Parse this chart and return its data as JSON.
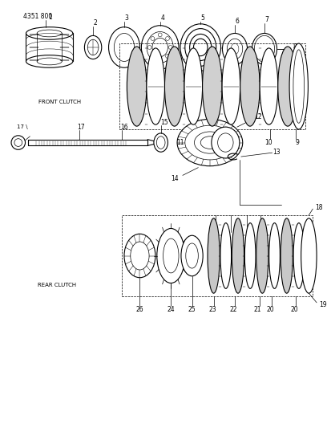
{
  "title": "4351 800",
  "bg": "#ffffff",
  "lc": "#000000",
  "front_clutch_label": "FRONT CLUTCH",
  "rear_clutch_label": "REAR CLUTCH",
  "figsize": [
    4.08,
    5.33
  ],
  "dpi": 100
}
